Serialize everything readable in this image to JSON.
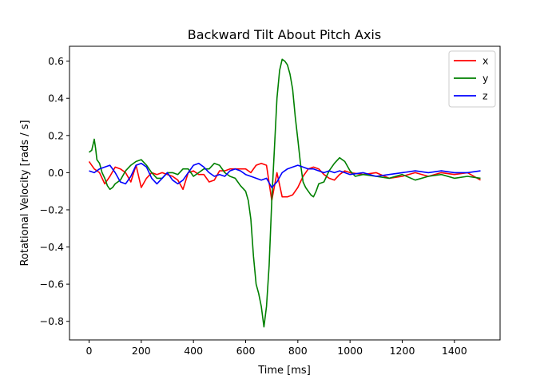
{
  "chart_data": {
    "type": "line",
    "title": "Backward Tilt About Pitch Axis",
    "xlabel": "Time [ms]",
    "ylabel": "Rotational Velocity [rads / s]",
    "xlim": [
      -75,
      1575
    ],
    "ylim": [
      -0.9,
      0.68
    ],
    "xticks": [
      0,
      200,
      400,
      600,
      800,
      1000,
      1200,
      1400
    ],
    "yticks": [
      -0.8,
      -0.6,
      -0.4,
      -0.2,
      0.0,
      0.2,
      0.4,
      0.6
    ],
    "ytick_labels": [
      "−0.8",
      "−0.6",
      "−0.4",
      "−0.2",
      "0.0",
      "0.2",
      "0.4",
      "0.6"
    ],
    "grid": false,
    "legend_position": "top-right",
    "series": [
      {
        "name": "x",
        "color": "#ff0000",
        "x": [
          0,
          20,
          40,
          60,
          80,
          100,
          120,
          140,
          160,
          180,
          200,
          220,
          240,
          260,
          280,
          300,
          320,
          340,
          360,
          380,
          400,
          420,
          440,
          460,
          480,
          500,
          520,
          540,
          560,
          580,
          600,
          620,
          640,
          660,
          680,
          700,
          720,
          740,
          760,
          780,
          800,
          820,
          840,
          860,
          880,
          900,
          920,
          940,
          960,
          980,
          1000,
          1050,
          1100,
          1150,
          1200,
          1250,
          1300,
          1350,
          1400,
          1450,
          1500
        ],
        "values": [
          0.06,
          0.02,
          0.0,
          -0.06,
          -0.02,
          0.03,
          0.02,
          0.0,
          -0.05,
          0.04,
          -0.08,
          -0.03,
          0.0,
          -0.01,
          0.0,
          -0.01,
          -0.02,
          -0.04,
          -0.09,
          0.0,
          0.01,
          -0.01,
          -0.01,
          -0.05,
          -0.04,
          0.01,
          0.01,
          0.02,
          0.02,
          0.02,
          0.02,
          0.0,
          0.04,
          0.05,
          0.04,
          -0.15,
          0.0,
          -0.13,
          -0.13,
          -0.12,
          -0.08,
          -0.02,
          0.02,
          0.03,
          0.02,
          -0.01,
          -0.03,
          -0.04,
          -0.01,
          0.01,
          0.0,
          -0.01,
          0.0,
          -0.03,
          -0.02,
          0.0,
          -0.02,
          0.0,
          -0.01,
          0.0,
          -0.04
        ]
      },
      {
        "name": "y",
        "color": "#008000",
        "x": [
          0,
          10,
          20,
          25,
          30,
          40,
          50,
          60,
          70,
          80,
          90,
          100,
          120,
          140,
          160,
          180,
          200,
          220,
          240,
          260,
          280,
          300,
          320,
          340,
          360,
          380,
          400,
          420,
          440,
          460,
          480,
          500,
          520,
          540,
          560,
          580,
          600,
          610,
          620,
          630,
          640,
          650,
          660,
          670,
          680,
          690,
          700,
          710,
          720,
          730,
          740,
          750,
          760,
          770,
          780,
          790,
          800,
          810,
          820,
          830,
          840,
          850,
          860,
          870,
          880,
          900,
          920,
          940,
          960,
          980,
          1000,
          1020,
          1050,
          1100,
          1150,
          1200,
          1250,
          1300,
          1350,
          1400,
          1450,
          1500
        ],
        "values": [
          0.11,
          0.12,
          0.18,
          0.13,
          0.07,
          0.05,
          0.0,
          -0.03,
          -0.07,
          -0.09,
          -0.08,
          -0.06,
          -0.04,
          0.01,
          0.04,
          0.06,
          0.07,
          0.04,
          0.0,
          -0.03,
          -0.03,
          0.0,
          0.0,
          -0.01,
          0.02,
          0.02,
          -0.02,
          0.0,
          0.02,
          0.02,
          0.05,
          0.04,
          0.0,
          -0.02,
          -0.03,
          -0.07,
          -0.1,
          -0.15,
          -0.25,
          -0.45,
          -0.6,
          -0.65,
          -0.72,
          -0.83,
          -0.72,
          -0.5,
          -0.15,
          0.12,
          0.4,
          0.55,
          0.61,
          0.6,
          0.58,
          0.53,
          0.45,
          0.3,
          0.18,
          0.05,
          -0.05,
          -0.08,
          -0.1,
          -0.12,
          -0.13,
          -0.1,
          -0.06,
          -0.05,
          0.01,
          0.05,
          0.08,
          0.06,
          0.01,
          -0.02,
          -0.01,
          -0.02,
          -0.03,
          -0.01,
          -0.04,
          -0.02,
          -0.01,
          -0.03,
          -0.02,
          -0.03
        ]
      },
      {
        "name": "z",
        "color": "#0000ff",
        "x": [
          0,
          20,
          40,
          60,
          80,
          100,
          120,
          140,
          160,
          180,
          200,
          220,
          240,
          260,
          280,
          300,
          320,
          340,
          360,
          380,
          400,
          420,
          440,
          460,
          480,
          500,
          520,
          540,
          560,
          580,
          600,
          620,
          640,
          660,
          680,
          700,
          720,
          740,
          760,
          780,
          800,
          820,
          840,
          860,
          880,
          900,
          920,
          940,
          960,
          980,
          1000,
          1050,
          1100,
          1150,
          1200,
          1250,
          1300,
          1350,
          1400,
          1450,
          1500
        ],
        "values": [
          0.01,
          0.0,
          0.02,
          0.03,
          0.04,
          0.0,
          -0.05,
          -0.06,
          -0.02,
          0.04,
          0.05,
          0.03,
          -0.03,
          -0.06,
          -0.03,
          0.0,
          -0.04,
          -0.06,
          -0.04,
          0.0,
          0.04,
          0.05,
          0.03,
          0.0,
          -0.02,
          -0.01,
          -0.02,
          0.01,
          0.02,
          0.01,
          -0.01,
          -0.02,
          -0.03,
          -0.04,
          -0.03,
          -0.08,
          -0.05,
          0.0,
          0.02,
          0.03,
          0.04,
          0.03,
          0.02,
          0.02,
          0.01,
          0.0,
          0.01,
          0.0,
          0.01,
          0.0,
          -0.01,
          0.0,
          -0.02,
          -0.01,
          0.0,
          0.01,
          0.0,
          0.01,
          0.0,
          0.0,
          0.01
        ]
      }
    ]
  }
}
